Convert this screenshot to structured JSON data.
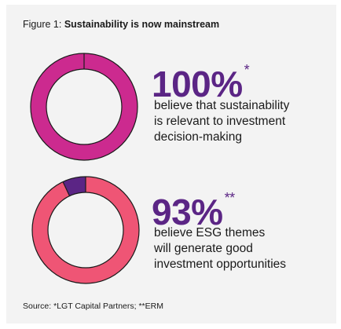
{
  "figure": {
    "title_prefix": "Figure 1: ",
    "title_bold": "Sustainability is now mainstream",
    "source": "Source: *LGT Capital Partners; **ERM"
  },
  "colors": {
    "magenta": "#cc2a8f",
    "pink": "#ef5575",
    "purple": "#5b2585",
    "outline": "#1a1a1a"
  },
  "chart_data": [
    {
      "type": "pie",
      "style": "donut",
      "values": [
        100
      ],
      "stat": "100%",
      "footnote": "*",
      "description_lines": [
        "believe that sustainability",
        "is relevant to investment",
        "decision-making"
      ],
      "segment_colors": [
        "#cc2a8f"
      ]
    },
    {
      "type": "pie",
      "style": "donut",
      "values": [
        93,
        7
      ],
      "stat": "93%",
      "footnote": "**",
      "description_lines": [
        "believe ESG themes",
        "will generate good",
        "investment opportunities"
      ],
      "segment_colors": [
        "#ef5575",
        "#5b2585"
      ]
    }
  ]
}
